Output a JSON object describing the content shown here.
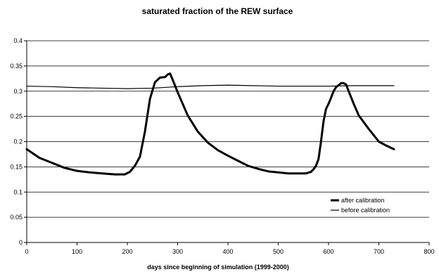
{
  "chart_data": {
    "type": "line",
    "title": "saturated fraction of the REW surface",
    "xlabel": "days since beginning of simulation (1999-2000)",
    "ylabel": "",
    "xlim": [
      0,
      800
    ],
    "ylim": [
      0,
      0.4
    ],
    "xticks": [
      "0",
      "100",
      "200",
      "300",
      "400",
      "500",
      "600",
      "700",
      "800"
    ],
    "yticks": [
      "0",
      "0.05",
      "0.1",
      "0.15",
      "0.2",
      "0.25",
      "0.3",
      "0.35",
      "0.4"
    ],
    "grid": "horizontal",
    "legend_position": "bottom-right",
    "series": [
      {
        "name": "after calibration",
        "color": "#000000",
        "weight": "thick",
        "x": [
          0,
          25,
          50,
          75,
          100,
          125,
          150,
          175,
          195,
          205,
          215,
          225,
          235,
          245,
          255,
          265,
          275,
          280,
          285,
          290,
          300,
          310,
          320,
          340,
          360,
          380,
          400,
          420,
          440,
          460,
          480,
          500,
          520,
          540,
          555,
          565,
          570,
          575,
          580,
          585,
          590,
          595,
          600,
          605,
          610,
          615,
          620,
          625,
          630,
          635,
          640,
          650,
          660,
          680,
          700,
          715,
          730
        ],
        "y": [
          0.185,
          0.168,
          0.158,
          0.148,
          0.142,
          0.139,
          0.137,
          0.135,
          0.135,
          0.14,
          0.152,
          0.17,
          0.22,
          0.285,
          0.318,
          0.327,
          0.328,
          0.333,
          0.335,
          0.323,
          0.298,
          0.275,
          0.252,
          0.22,
          0.198,
          0.183,
          0.172,
          0.162,
          0.152,
          0.146,
          0.141,
          0.139,
          0.137,
          0.137,
          0.137,
          0.14,
          0.145,
          0.152,
          0.165,
          0.2,
          0.24,
          0.265,
          0.275,
          0.287,
          0.3,
          0.308,
          0.312,
          0.316,
          0.316,
          0.313,
          0.3,
          0.275,
          0.252,
          0.225,
          0.2,
          0.192,
          0.185
        ]
      },
      {
        "name": "before calibration",
        "color": "#000000",
        "weight": "thin",
        "x": [
          0,
          50,
          100,
          150,
          200,
          250,
          300,
          350,
          400,
          450,
          500,
          550,
          600,
          650,
          700,
          730
        ],
        "y": [
          0.31,
          0.309,
          0.307,
          0.306,
          0.305,
          0.306,
          0.309,
          0.311,
          0.312,
          0.311,
          0.31,
          0.31,
          0.31,
          0.311,
          0.311,
          0.311
        ]
      }
    ]
  }
}
